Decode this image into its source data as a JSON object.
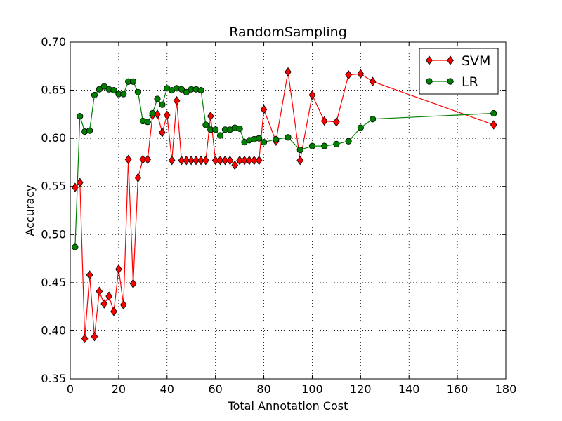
{
  "chart_data": {
    "type": "line",
    "title": "RandomSampling",
    "xlabel": "Total Annotation Cost",
    "ylabel": "Accuracy",
    "xlim": [
      0,
      180
    ],
    "ylim": [
      0.35,
      0.7
    ],
    "xticks": [
      0,
      20,
      40,
      60,
      80,
      100,
      120,
      140,
      160,
      180
    ],
    "yticks": [
      0.35,
      0.4,
      0.45,
      0.5,
      0.55,
      0.6,
      0.65,
      0.7
    ],
    "xtick_labels": [
      "0",
      "20",
      "40",
      "60",
      "80",
      "100",
      "120",
      "140",
      "160",
      "180"
    ],
    "ytick_labels": [
      "0.35",
      "0.40",
      "0.45",
      "0.50",
      "0.55",
      "0.60",
      "0.65",
      "0.70"
    ],
    "grid": true,
    "legend_position": "top-right",
    "series": [
      {
        "name": "SVM",
        "color": "#ff0000",
        "marker": "diamond",
        "x": [
          2,
          4,
          6,
          8,
          10,
          12,
          14,
          16,
          18,
          20,
          22,
          24,
          26,
          28,
          30,
          32,
          34,
          36,
          38,
          40,
          42,
          44,
          46,
          48,
          50,
          52,
          54,
          56,
          58,
          60,
          62,
          64,
          66,
          68,
          70,
          72,
          74,
          76,
          78,
          80,
          85,
          90,
          95,
          100,
          105,
          110,
          115,
          120,
          125,
          175
        ],
        "y": [
          0.549,
          0.554,
          0.392,
          0.458,
          0.394,
          0.441,
          0.428,
          0.436,
          0.42,
          0.464,
          0.427,
          0.578,
          0.449,
          0.559,
          0.578,
          0.578,
          0.624,
          0.625,
          0.606,
          0.624,
          0.577,
          0.639,
          0.577,
          0.577,
          0.577,
          0.577,
          0.577,
          0.577,
          0.623,
          0.577,
          0.577,
          0.577,
          0.577,
          0.572,
          0.577,
          0.577,
          0.577,
          0.577,
          0.577,
          0.63,
          0.597,
          0.669,
          0.577,
          0.645,
          0.618,
          0.617,
          0.666,
          0.667,
          0.659,
          0.614
        ]
      },
      {
        "name": "LR",
        "color": "#008000",
        "marker": "circle",
        "x": [
          2,
          4,
          6,
          8,
          10,
          12,
          14,
          16,
          18,
          20,
          22,
          24,
          26,
          28,
          30,
          32,
          34,
          36,
          38,
          40,
          42,
          44,
          46,
          48,
          50,
          52,
          54,
          56,
          58,
          60,
          62,
          64,
          66,
          68,
          70,
          72,
          74,
          76,
          78,
          80,
          85,
          90,
          95,
          100,
          105,
          110,
          115,
          120,
          125,
          175
        ],
        "y": [
          0.487,
          0.623,
          0.607,
          0.608,
          0.645,
          0.651,
          0.654,
          0.651,
          0.65,
          0.646,
          0.646,
          0.659,
          0.659,
          0.648,
          0.618,
          0.617,
          0.626,
          0.641,
          0.635,
          0.652,
          0.65,
          0.652,
          0.651,
          0.648,
          0.651,
          0.651,
          0.65,
          0.614,
          0.609,
          0.609,
          0.603,
          0.609,
          0.609,
          0.611,
          0.61,
          0.596,
          0.598,
          0.599,
          0.6,
          0.596,
          0.599,
          0.601,
          0.588,
          0.592,
          0.592,
          0.594,
          0.597,
          0.611,
          0.62,
          0.626
        ]
      }
    ]
  }
}
